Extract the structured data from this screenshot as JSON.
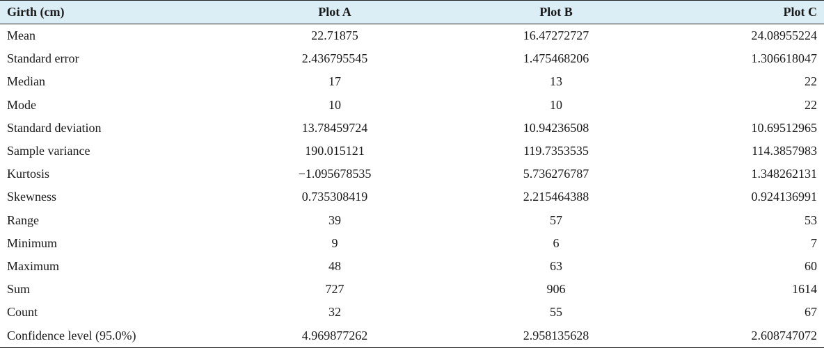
{
  "table": {
    "headers": [
      "Girth (cm)",
      "Plot A",
      "Plot B",
      "Plot C"
    ],
    "rows": [
      [
        "Mean",
        "22.71875",
        "16.47272727",
        "24.08955224"
      ],
      [
        "Standard error",
        "2.436795545",
        "1.475468206",
        "1.306618047"
      ],
      [
        "Median",
        "17",
        "13",
        "22"
      ],
      [
        "Mode",
        "10",
        "10",
        "22"
      ],
      [
        "Standard deviation",
        "13.78459724",
        "10.94236508",
        "10.69512965"
      ],
      [
        "Sample variance",
        "190.015121",
        "119.7353535",
        "114.3857983"
      ],
      [
        "Kurtosis",
        "−1.095678535",
        "5.736276787",
        "1.348262131"
      ],
      [
        "Skewness",
        "0.735308419",
        "2.215464388",
        "0.924136991"
      ],
      [
        "Range",
        "39",
        "57",
        "53"
      ],
      [
        "Minimum",
        "9",
        "6",
        "7"
      ],
      [
        "Maximum",
        "48",
        "63",
        "60"
      ],
      [
        "Sum",
        "727",
        "906",
        "1614"
      ],
      [
        "Count",
        "32",
        "55",
        "67"
      ],
      [
        "Confidence level (95.0%)",
        "4.969877262",
        "2.958135628",
        "2.608747072"
      ]
    ]
  },
  "colors": {
    "header_background": "#dbeef5",
    "rule_color": "#222222"
  }
}
